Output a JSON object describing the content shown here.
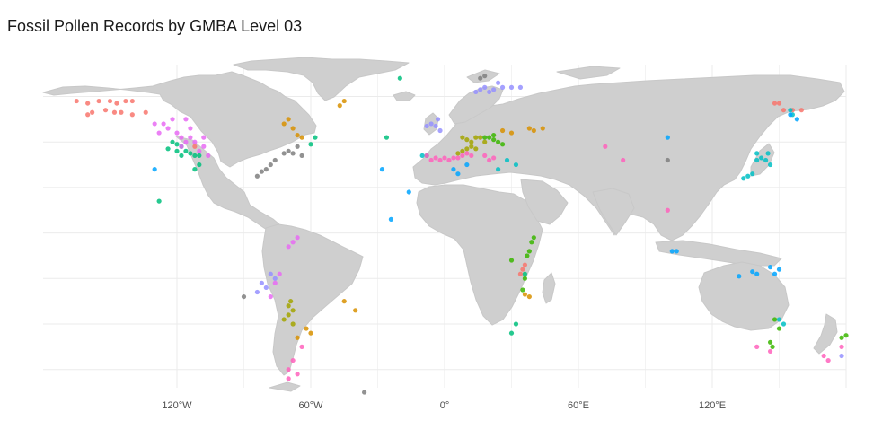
{
  "title": "Fossil Pollen Records by GMBA Level 03",
  "colors": {
    "land": "#cfcfcf",
    "grid": "#ebebeb",
    "background": "#ffffff",
    "tick_text": "#4d4d4d"
  },
  "chart_data": {
    "type": "scatter",
    "title": "Fossil Pollen Records by GMBA Level 03",
    "xlabel": "",
    "ylabel": "",
    "xlim": [
      -180,
      180
    ],
    "ylim": [
      -58,
      84
    ],
    "grid": true,
    "legend": "none",
    "x_ticks": [
      {
        "value": -120,
        "label": "120°W"
      },
      {
        "value": -60,
        "label": "60°W"
      },
      {
        "value": 0,
        "label": "0°"
      },
      {
        "value": 60,
        "label": "60°E"
      },
      {
        "value": 120,
        "label": "120°E"
      }
    ],
    "series": [
      {
        "color": "#f8766d",
        "points": [
          [
            -165,
            68
          ],
          [
            -160,
            67
          ],
          [
            -155,
            68
          ],
          [
            -150,
            68
          ],
          [
            -147,
            67
          ],
          [
            -143,
            68
          ],
          [
            -140,
            68
          ],
          [
            -152,
            64
          ],
          [
            -148,
            63
          ],
          [
            -145,
            63
          ],
          [
            -140,
            62
          ],
          [
            -134,
            63
          ],
          [
            -160,
            62
          ],
          [
            -158,
            63
          ],
          [
            -112,
            48
          ],
          [
            148,
            67
          ],
          [
            150,
            67
          ],
          [
            152,
            64
          ],
          [
            156,
            64
          ],
          [
            160,
            64
          ],
          [
            36,
            -4
          ],
          [
            35,
            -6
          ],
          [
            34,
            -8
          ]
        ]
      },
      {
        "color": "#d89000",
        "points": [
          [
            -72,
            58
          ],
          [
            -68,
            56
          ],
          [
            -70,
            60
          ],
          [
            -64,
            52
          ],
          [
            -66,
            53
          ],
          [
            -45,
            -20
          ],
          [
            -40,
            -24
          ],
          [
            -60,
            -34
          ],
          [
            -66,
            -36
          ],
          [
            -62,
            -32
          ],
          [
            38,
            56
          ],
          [
            40,
            55
          ],
          [
            44,
            56
          ],
          [
            26,
            55
          ],
          [
            30,
            54
          ],
          [
            36,
            -17
          ],
          [
            38,
            -18
          ],
          [
            -45,
            68
          ],
          [
            -47,
            66
          ]
        ]
      },
      {
        "color": "#a3a500",
        "points": [
          [
            8,
            52
          ],
          [
            10,
            51
          ],
          [
            12,
            50
          ],
          [
            14,
            52
          ],
          [
            16,
            52
          ],
          [
            18,
            50
          ],
          [
            12,
            48
          ],
          [
            14,
            47
          ],
          [
            8,
            46
          ],
          [
            6,
            45
          ],
          [
            10,
            47
          ],
          [
            -70,
            -22
          ],
          [
            -68,
            -24
          ],
          [
            -70,
            -26
          ],
          [
            -72,
            -28
          ],
          [
            -68,
            -30
          ],
          [
            -69,
            -20
          ]
        ]
      },
      {
        "color": "#39b600",
        "points": [
          [
            18,
            52
          ],
          [
            22,
            51
          ],
          [
            24,
            50
          ],
          [
            26,
            49
          ],
          [
            20,
            52
          ],
          [
            22,
            53
          ],
          [
            40,
            8
          ],
          [
            39,
            6
          ],
          [
            38,
            2
          ],
          [
            37,
            0
          ],
          [
            30,
            -2
          ],
          [
            36,
            -10
          ],
          [
            35,
            -15
          ],
          [
            148,
            -28
          ],
          [
            150,
            -32
          ],
          [
            146,
            -38
          ],
          [
            147,
            -40
          ],
          [
            180,
            -35
          ],
          [
            178,
            -36
          ]
        ]
      },
      {
        "color": "#00bf7d",
        "points": [
          [
            -122,
            50
          ],
          [
            -120,
            49
          ],
          [
            -118,
            48
          ],
          [
            -116,
            46
          ],
          [
            -114,
            45
          ],
          [
            -112,
            44
          ],
          [
            -110,
            44
          ],
          [
            -118,
            44
          ],
          [
            -120,
            46
          ],
          [
            -124,
            47
          ],
          [
            -110,
            40
          ],
          [
            -112,
            38
          ],
          [
            -128,
            24
          ],
          [
            -58,
            52
          ],
          [
            -60,
            49
          ],
          [
            -26,
            52
          ],
          [
            36,
            -8
          ],
          [
            32,
            -30
          ],
          [
            30,
            -34
          ],
          [
            -20,
            78
          ]
        ]
      },
      {
        "color": "#00bfc4",
        "points": [
          [
            140,
            42
          ],
          [
            142,
            43
          ],
          [
            144,
            42
          ],
          [
            146,
            40
          ],
          [
            138,
            36
          ],
          [
            136,
            35
          ],
          [
            134,
            34
          ],
          [
            140,
            45
          ],
          [
            145,
            45
          ],
          [
            152,
            -30
          ],
          [
            150,
            -28
          ],
          [
            -8,
            44
          ],
          [
            -10,
            44
          ],
          [
            28,
            42
          ],
          [
            24,
            38
          ],
          [
            32,
            40
          ],
          [
            155,
            64
          ],
          [
            156,
            62
          ]
        ]
      },
      {
        "color": "#00a5ff",
        "points": [
          [
            132,
            -9
          ],
          [
            138,
            -7
          ],
          [
            140,
            -8
          ],
          [
            146,
            -5
          ],
          [
            148,
            -8
          ],
          [
            150,
            -6
          ],
          [
            -28,
            38
          ],
          [
            -16,
            28
          ],
          [
            -24,
            16
          ],
          [
            10,
            40
          ],
          [
            4,
            38
          ],
          [
            6,
            36
          ],
          [
            100,
            52
          ],
          [
            102,
            2
          ],
          [
            104,
            2
          ],
          [
            -130,
            38
          ],
          [
            155,
            62
          ],
          [
            158,
            60
          ]
        ]
      },
      {
        "color": "#9590ff",
        "points": [
          [
            14,
            72
          ],
          [
            16,
            73
          ],
          [
            18,
            74
          ],
          [
            20,
            72
          ],
          [
            22,
            73
          ],
          [
            24,
            76
          ],
          [
            26,
            74
          ],
          [
            30,
            74
          ],
          [
            34,
            74
          ],
          [
            -6,
            58
          ],
          [
            -4,
            57
          ],
          [
            -8,
            57
          ],
          [
            -2,
            55
          ],
          [
            -3,
            60
          ],
          [
            -84,
            -16
          ],
          [
            -80,
            -14
          ],
          [
            -82,
            -12
          ],
          [
            -78,
            -8
          ],
          [
            -76,
            -10
          ],
          [
            178,
            -44
          ]
        ]
      },
      {
        "color": "#e76bf3",
        "points": [
          [
            -126,
            58
          ],
          [
            -124,
            56
          ],
          [
            -120,
            54
          ],
          [
            -118,
            52
          ],
          [
            -116,
            50
          ],
          [
            -114,
            52
          ],
          [
            -122,
            60
          ],
          [
            -130,
            58
          ],
          [
            -128,
            54
          ],
          [
            -118,
            48
          ],
          [
            -110,
            46
          ],
          [
            -112,
            50
          ],
          [
            -108,
            48
          ],
          [
            -106,
            44
          ],
          [
            -108,
            52
          ],
          [
            -114,
            56
          ],
          [
            -116,
            60
          ],
          [
            -66,
            8
          ],
          [
            -68,
            6
          ],
          [
            -70,
            4
          ],
          [
            -74,
            -8
          ],
          [
            -76,
            -12
          ],
          [
            -78,
            -18
          ]
        ]
      },
      {
        "color": "#ff62bc",
        "points": [
          [
            -8,
            44
          ],
          [
            -6,
            42
          ],
          [
            -4,
            43
          ],
          [
            -2,
            42
          ],
          [
            0,
            43
          ],
          [
            2,
            42
          ],
          [
            4,
            43
          ],
          [
            6,
            43
          ],
          [
            8,
            44
          ],
          [
            10,
            45
          ],
          [
            12,
            44
          ],
          [
            20,
            42
          ],
          [
            22,
            43
          ],
          [
            18,
            44
          ],
          [
            -64,
            -40
          ],
          [
            -68,
            -46
          ],
          [
            -70,
            -50
          ],
          [
            -66,
            -52
          ],
          [
            -70,
            -54
          ],
          [
            140,
            -40
          ],
          [
            146,
            -42
          ],
          [
            170,
            -44
          ],
          [
            172,
            -46
          ],
          [
            178,
            -40
          ],
          [
            80,
            42
          ],
          [
            72,
            48
          ],
          [
            100,
            20
          ]
        ]
      },
      {
        "color": "#7f7f7f",
        "points": [
          [
            -78,
            40
          ],
          [
            -80,
            38
          ],
          [
            -84,
            35
          ],
          [
            -82,
            37
          ],
          [
            -76,
            42
          ],
          [
            -72,
            45
          ],
          [
            -70,
            46
          ],
          [
            -68,
            45
          ],
          [
            -66,
            48
          ],
          [
            -64,
            44
          ],
          [
            -90,
            -18
          ],
          [
            -36,
            -60
          ],
          [
            18,
            79
          ],
          [
            16,
            78
          ],
          [
            100,
            42
          ]
        ]
      }
    ]
  }
}
